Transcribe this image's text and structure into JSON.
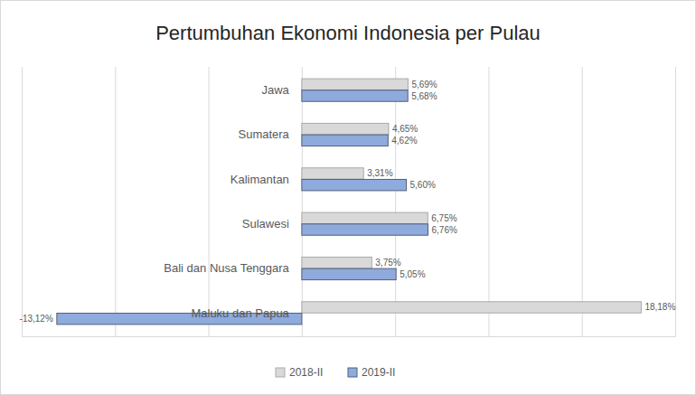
{
  "chart_data": {
    "type": "bar",
    "orientation": "horizontal",
    "title": "Pertumbuhan Ekonomi Indonesia per Pulau",
    "categories": [
      "Jawa",
      "Sumatera",
      "Kalimantan",
      "Sulawesi",
      "Bali dan Nusa Tenggara",
      "Maluku dan Papua"
    ],
    "series": [
      {
        "name": "2018-II",
        "color": "#d9d9d9",
        "values": [
          5.69,
          4.65,
          3.31,
          6.75,
          3.75,
          18.18
        ],
        "value_labels": [
          "5,69%",
          "4,65%",
          "3,31%",
          "6,75%",
          "3,75%",
          "18,18%"
        ]
      },
      {
        "name": "2019-II",
        "color": "#8faadc",
        "values": [
          5.68,
          4.62,
          5.6,
          6.76,
          5.05,
          -13.12
        ],
        "value_labels": [
          "5,68%",
          "4,62%",
          "5,60%",
          "6,76%",
          "5,05%",
          "-13,12%"
        ]
      }
    ],
    "xlim": [
      -15,
      20
    ],
    "xticks": [
      -15,
      -10,
      -5,
      0,
      5,
      10,
      15,
      20
    ],
    "grid": true,
    "tick_labels": "y",
    "data_labels": true,
    "legend": "bottom"
  }
}
